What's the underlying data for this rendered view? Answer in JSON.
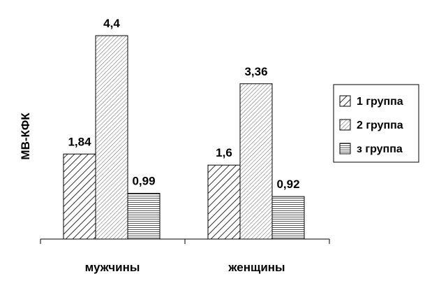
{
  "chart_data": {
    "type": "bar",
    "categories": [
      "мужчины",
      "женщины"
    ],
    "series": [
      {
        "name": "1 группа",
        "values": [
          1.84,
          1.6
        ],
        "labels": [
          "1,84",
          "1,6"
        ],
        "pattern": "diagonal-hatch"
      },
      {
        "name": "2 группа",
        "values": [
          4.4,
          3.36
        ],
        "labels": [
          "4,4",
          "3,36"
        ],
        "pattern": "dense-diagonal-hatch"
      },
      {
        "name": "з группа",
        "values": [
          0.99,
          0.92
        ],
        "labels": [
          "0,99",
          "0,92"
        ],
        "pattern": "horizontal-lines"
      }
    ],
    "ylabel": "МВ-КФК",
    "xlabel": "",
    "ylim": [
      0,
      4.8
    ],
    "grid": false,
    "legend_position": "right",
    "colors": {
      "bar_fill": "#ffffff",
      "stroke": "#000000"
    }
  }
}
